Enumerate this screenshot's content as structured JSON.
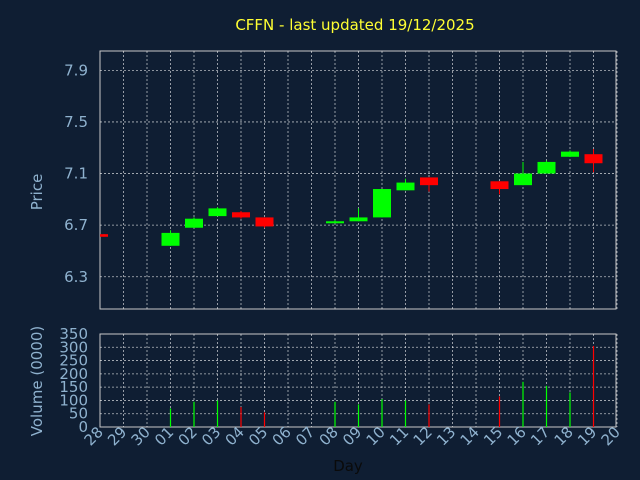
{
  "title": "CFFN - last updated 19/12/2025",
  "colors": {
    "background": "#0f1e33",
    "up": "#00ff00",
    "down": "#ff0000",
    "title": "#ffff33",
    "axis_text": "#8fb2cf",
    "grid": "#ffffff"
  },
  "chart_data": [
    {
      "type": "candlestick",
      "ylabel": "Price",
      "ylim": [
        6.05,
        8.05
      ],
      "yticks": [
        "7.9",
        "7.5",
        "7.1",
        "6.7",
        "6.3"
      ],
      "ytick_values": [
        7.9,
        7.5,
        7.1,
        6.7,
        6.3
      ],
      "grid": true,
      "categories": [
        "28",
        "29",
        "30",
        "01",
        "02",
        "03",
        "04",
        "05",
        "06",
        "07",
        "08",
        "09",
        "10",
        "11",
        "12",
        "13",
        "14",
        "15",
        "16",
        "17",
        "18",
        "19",
        "20"
      ],
      "candles": [
        {
          "day": "28",
          "open": 6.63,
          "high": 6.63,
          "low": 6.61,
          "close": 6.61
        },
        {
          "day": "01",
          "open": 6.54,
          "high": 6.66,
          "low": 6.54,
          "close": 6.64
        },
        {
          "day": "02",
          "open": 6.68,
          "high": 6.76,
          "low": 6.68,
          "close": 6.75
        },
        {
          "day": "03",
          "open": 6.77,
          "high": 6.84,
          "low": 6.77,
          "close": 6.83
        },
        {
          "day": "04",
          "open": 6.8,
          "high": 6.81,
          "low": 6.75,
          "close": 6.76
        },
        {
          "day": "05",
          "open": 6.76,
          "high": 6.76,
          "low": 6.68,
          "close": 6.69
        },
        {
          "day": "08",
          "open": 6.72,
          "high": 6.74,
          "low": 6.72,
          "close": 6.73
        },
        {
          "day": "09",
          "open": 6.73,
          "high": 6.83,
          "low": 6.73,
          "close": 6.76
        },
        {
          "day": "10",
          "open": 6.76,
          "high": 6.98,
          "low": 6.76,
          "close": 6.98
        },
        {
          "day": "11",
          "open": 6.97,
          "high": 7.06,
          "low": 6.97,
          "close": 7.03
        },
        {
          "day": "12",
          "open": 7.07,
          "high": 7.07,
          "low": 6.96,
          "close": 7.01
        },
        {
          "day": "15",
          "open": 7.04,
          "high": 7.04,
          "low": 6.94,
          "close": 6.98
        },
        {
          "day": "16",
          "open": 7.01,
          "high": 7.19,
          "low": 7.01,
          "close": 7.1
        },
        {
          "day": "17",
          "open": 7.1,
          "high": 7.2,
          "low": 7.1,
          "close": 7.19
        },
        {
          "day": "18",
          "open": 7.23,
          "high": 7.28,
          "low": 7.23,
          "close": 7.27
        },
        {
          "day": "19",
          "open": 7.25,
          "high": 7.29,
          "low": 7.11,
          "close": 7.18
        }
      ]
    },
    {
      "type": "bar",
      "ylabel": "Volume (0000)",
      "xlabel": "Day",
      "ylim": [
        0,
        350
      ],
      "yticks": [
        "350",
        "300",
        "250",
        "200",
        "150",
        "100",
        "50",
        "0"
      ],
      "ytick_values": [
        350,
        300,
        250,
        200,
        150,
        100,
        50,
        0
      ],
      "grid": true,
      "categories": [
        "28",
        "29",
        "30",
        "01",
        "02",
        "03",
        "04",
        "05",
        "06",
        "07",
        "08",
        "09",
        "10",
        "11",
        "12",
        "13",
        "14",
        "15",
        "16",
        "17",
        "18",
        "19",
        "20"
      ],
      "bars": [
        {
          "day": "01",
          "value": 70,
          "direction": "up"
        },
        {
          "day": "02",
          "value": 95,
          "direction": "up"
        },
        {
          "day": "03",
          "value": 100,
          "direction": "up"
        },
        {
          "day": "04",
          "value": 75,
          "direction": "down"
        },
        {
          "day": "05",
          "value": 55,
          "direction": "down"
        },
        {
          "day": "08",
          "value": 95,
          "direction": "up"
        },
        {
          "day": "09",
          "value": 85,
          "direction": "up"
        },
        {
          "day": "10",
          "value": 105,
          "direction": "up"
        },
        {
          "day": "11",
          "value": 100,
          "direction": "up"
        },
        {
          "day": "12",
          "value": 85,
          "direction": "down"
        },
        {
          "day": "15",
          "value": 115,
          "direction": "down"
        },
        {
          "day": "16",
          "value": 170,
          "direction": "up"
        },
        {
          "day": "17",
          "value": 155,
          "direction": "up"
        },
        {
          "day": "18",
          "value": 130,
          "direction": "up"
        },
        {
          "day": "19",
          "value": 305,
          "direction": "down"
        }
      ]
    }
  ]
}
